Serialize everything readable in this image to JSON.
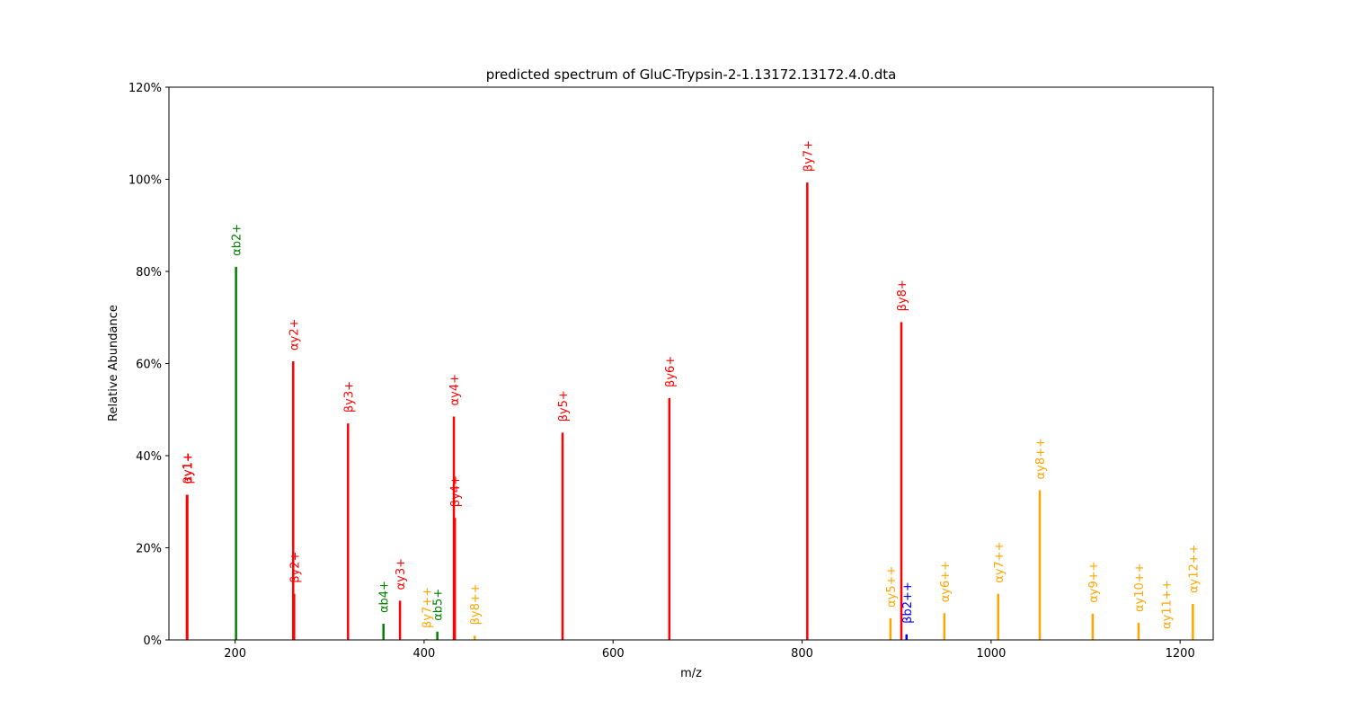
{
  "chart_data": {
    "type": "bar",
    "title": "predicted spectrum of GluC-Trypsin-2-1.13172.13172.4.0.dta",
    "xlabel": "m/z",
    "ylabel": "Relative Abundance",
    "xlim": [
      130,
      1235
    ],
    "ylim": [
      0,
      1.2
    ],
    "x_ticks": [
      200,
      400,
      600,
      800,
      1000,
      1200
    ],
    "x_tick_labels": [
      "200",
      "400",
      "600",
      "800",
      "1000",
      "1200"
    ],
    "y_ticks": [
      0,
      0.2,
      0.4,
      0.6,
      0.8,
      1.0,
      1.2
    ],
    "y_tick_labels": [
      "0%",
      "20%",
      "40%",
      "60%",
      "80%",
      "100%",
      "120%"
    ],
    "grid": false,
    "legend": "none",
    "colors": {
      "red": "#ff0000",
      "green": "#008000",
      "orange": "#ffa500",
      "blue": "#0000ff"
    },
    "peaks": [
      {
        "mz": 149.0,
        "intensity": 0.315,
        "label": "αy1+",
        "color": "#ff0000"
      },
      {
        "mz": 149.5,
        "intensity": 0.315,
        "label": "βy1+",
        "color": "#ff0000"
      },
      {
        "mz": 201.0,
        "intensity": 0.81,
        "label": "αb2+",
        "color": "#008000"
      },
      {
        "mz": 261.5,
        "intensity": 0.605,
        "label": "αy2+",
        "color": "#ff0000"
      },
      {
        "mz": 262.5,
        "intensity": 0.1,
        "label": "βy2+",
        "color": "#ff0000"
      },
      {
        "mz": 319.5,
        "intensity": 0.47,
        "label": "βy3+",
        "color": "#ff0000"
      },
      {
        "mz": 357.0,
        "intensity": 0.035,
        "label": "αb4+",
        "color": "#008000"
      },
      {
        "mz": 374.5,
        "intensity": 0.085,
        "label": "αy3+",
        "color": "#ff0000"
      },
      {
        "mz": 402.5,
        "intensity": 0.002,
        "label": "βy7++",
        "color": "#ffa500"
      },
      {
        "mz": 414.0,
        "intensity": 0.018,
        "label": "αb5+",
        "color": "#008000"
      },
      {
        "mz": 431.5,
        "intensity": 0.485,
        "label": "αy4+",
        "color": "#ff0000"
      },
      {
        "mz": 432.5,
        "intensity": 0.265,
        "label": "βy4+",
        "color": "#ff0000"
      },
      {
        "mz": 453.5,
        "intensity": 0.009,
        "label": "βy8++",
        "color": "#ffa500"
      },
      {
        "mz": 546.5,
        "intensity": 0.45,
        "label": "βy5+",
        "color": "#ff0000"
      },
      {
        "mz": 659.5,
        "intensity": 0.525,
        "label": "βy6+",
        "color": "#ff0000"
      },
      {
        "mz": 805.5,
        "intensity": 0.993,
        "label": "βy7+",
        "color": "#ff0000"
      },
      {
        "mz": 893.5,
        "intensity": 0.047,
        "label": "αy5++",
        "color": "#ffa500"
      },
      {
        "mz": 905.0,
        "intensity": 0.69,
        "label": "βy8+",
        "color": "#ff0000"
      },
      {
        "mz": 910.5,
        "intensity": 0.012,
        "label": "βb2++",
        "color": "#0000ff"
      },
      {
        "mz": 950.5,
        "intensity": 0.058,
        "label": "αy6++",
        "color": "#ffa500"
      },
      {
        "mz": 1007.5,
        "intensity": 0.1,
        "label": "αy7++",
        "color": "#ffa500"
      },
      {
        "mz": 1051.5,
        "intensity": 0.325,
        "label": "αy8++",
        "color": "#ffa500"
      },
      {
        "mz": 1107.5,
        "intensity": 0.057,
        "label": "αy9++",
        "color": "#ffa500"
      },
      {
        "mz": 1156.0,
        "intensity": 0.037,
        "label": "αy10++",
        "color": "#ffa500"
      },
      {
        "mz": 1185.0,
        "intensity": 0.0,
        "label": "αy11++",
        "color": "#ffa500"
      },
      {
        "mz": 1213.5,
        "intensity": 0.078,
        "label": "αy12++",
        "color": "#ffa500"
      }
    ]
  }
}
